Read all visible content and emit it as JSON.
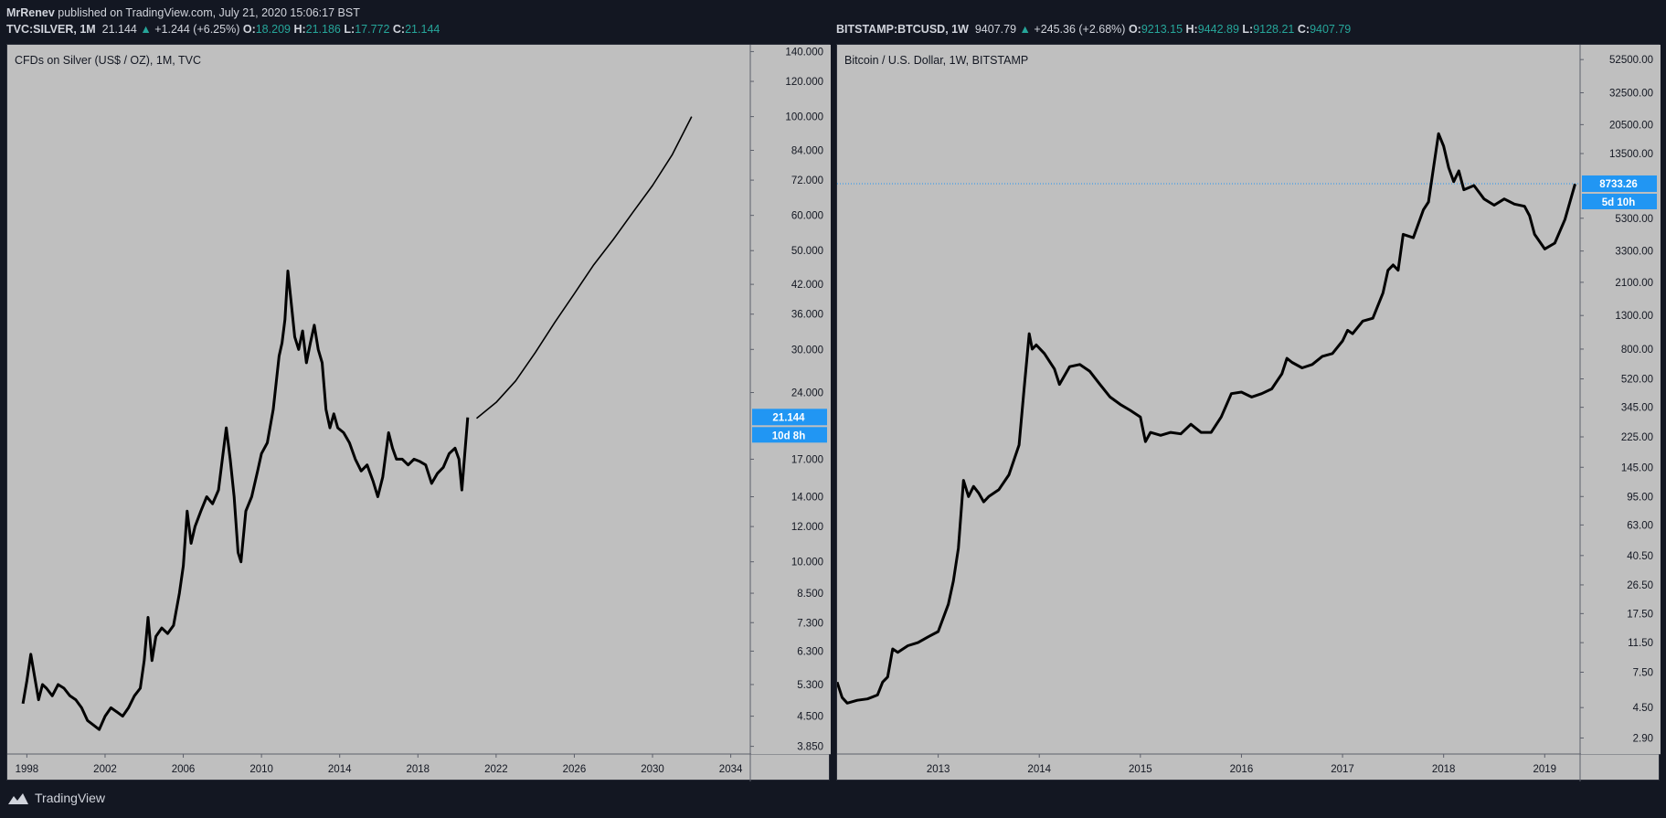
{
  "header": {
    "user": "MrRenev",
    "text": "published on TradingView.com, July 21, 2020 15:06:17 BST"
  },
  "left_info": {
    "symbol": "TVC:SILVER, 1M",
    "price": "21.144",
    "change": "+1.244 (+6.25%)",
    "o_label": "O:",
    "o": "18.209",
    "h_label": "H:",
    "h": "21.186",
    "l_label": "L:",
    "l": "17.772",
    "c_label": "C:",
    "c": "21.144"
  },
  "right_info": {
    "symbol": "BITSTAMP:BTCUSD, 1W",
    "price": "9407.79",
    "change": "+245.36 (+2.68%)",
    "o_label": "O:",
    "o": "9213.15",
    "h_label": "H:",
    "h": "9442.89",
    "l_label": "L:",
    "l": "9128.21",
    "c_label": "C:",
    "c": "9407.79"
  },
  "brand": {
    "name": "TradingView"
  },
  "colors": {
    "background": "#131722",
    "panel": "#bfbfbf",
    "line": "#000000",
    "accent": "#2196f3",
    "up": "#26a69a"
  },
  "chart_data": [
    {
      "type": "line",
      "title": "CFDs on Silver (US$ / OZ), 1M, TVC",
      "scale": "log",
      "ylim": [
        3.7,
        145
      ],
      "xlim": [
        1997.0,
        2035.0
      ],
      "y_ticks": [
        "140.000",
        "120.000",
        "100.000",
        "84.000",
        "72.000",
        "60.000",
        "50.000",
        "42.000",
        "36.000",
        "30.000",
        "24.000",
        "21.144",
        "17.000",
        "14.000",
        "12.000",
        "10.000",
        "8.500",
        "7.300",
        "6.300",
        "5.300",
        "4.500",
        "3.850"
      ],
      "x_ticks": [
        "1998",
        "2002",
        "2006",
        "2010",
        "2014",
        "2018",
        "2022",
        "2026",
        "2030",
        "2034"
      ],
      "last_value_label": "21.144",
      "countdown_label": "10d 8h",
      "series": [
        {
          "x": [
            1997.8,
            1998.0,
            1998.2,
            1998.4,
            1998.6,
            1998.8,
            1999.0,
            1999.3,
            1999.6,
            1999.9,
            2000.2,
            2000.5,
            2000.8,
            2001.1,
            2001.4,
            2001.7,
            2002.0,
            2002.3,
            2002.6,
            2002.9,
            2003.2,
            2003.5,
            2003.8,
            2004.0,
            2004.2,
            2004.4,
            2004.6,
            2004.9,
            2005.2,
            2005.5,
            2005.8,
            2006.0,
            2006.2,
            2006.4,
            2006.6,
            2006.9,
            2007.2,
            2007.5,
            2007.8,
            2008.0,
            2008.2,
            2008.4,
            2008.6,
            2008.8,
            2008.95,
            2009.2,
            2009.5,
            2009.8,
            2010.0,
            2010.3,
            2010.6,
            2010.9,
            2011.05,
            2011.2,
            2011.35,
            2011.5,
            2011.7,
            2011.9,
            2012.1,
            2012.3,
            2012.5,
            2012.7,
            2012.9,
            2013.1,
            2013.3,
            2013.5,
            2013.7,
            2013.9,
            2014.2,
            2014.5,
            2014.8,
            2015.1,
            2015.4,
            2015.7,
            2015.95,
            2016.2,
            2016.5,
            2016.7,
            2016.9,
            2017.2,
            2017.5,
            2017.8,
            2018.1,
            2018.4,
            2018.7,
            2019.0,
            2019.3,
            2019.6,
            2019.9,
            2020.1,
            2020.25,
            2020.4,
            2020.55
          ],
          "y": [
            4.8,
            5.4,
            6.2,
            5.5,
            4.9,
            5.3,
            5.2,
            5.0,
            5.3,
            5.2,
            5.0,
            4.9,
            4.7,
            4.4,
            4.3,
            4.2,
            4.5,
            4.7,
            4.6,
            4.5,
            4.7,
            5.0,
            5.2,
            6.0,
            7.5,
            6.0,
            6.8,
            7.1,
            6.9,
            7.2,
            8.5,
            9.8,
            13.0,
            11.0,
            12.0,
            13.0,
            14.0,
            13.5,
            14.5,
            17.0,
            20.0,
            17.0,
            14.0,
            10.5,
            10.0,
            13.0,
            14.0,
            16.0,
            17.5,
            18.5,
            22.0,
            29.0,
            31.0,
            35.0,
            45.0,
            39.0,
            32.0,
            30.0,
            33.0,
            28.0,
            31.0,
            34.0,
            30.0,
            28.0,
            22.0,
            20.0,
            21.5,
            20.0,
            19.5,
            18.5,
            17.0,
            16.0,
            16.5,
            15.2,
            14.0,
            15.5,
            19.5,
            18.0,
            17.0,
            17.0,
            16.5,
            17.0,
            16.8,
            16.5,
            15.0,
            15.8,
            16.3,
            17.5,
            18.0,
            17.0,
            14.5,
            17.5,
            21.1
          ]
        },
        {
          "name": "projection",
          "x": [
            2021.0,
            2022.0,
            2023.0,
            2024.0,
            2025.0,
            2026.0,
            2027.0,
            2028.0,
            2029.0,
            2030.0,
            2031.0,
            2032.0
          ],
          "y": [
            21.0,
            22.8,
            25.5,
            29.5,
            34.5,
            40.0,
            46.5,
            53.0,
            61.0,
            70.0,
            82.0,
            100.0
          ]
        }
      ]
    },
    {
      "type": "line",
      "title": "Bitcoin / U.S. Dollar, 1W, BITSTAMP",
      "scale": "log",
      "ylim": [
        2.3,
        65000
      ],
      "xlim": [
        2012.0,
        2019.35
      ],
      "y_ticks": [
        "52500.00",
        "32500.00",
        "20500.00",
        "13500.00",
        "8733.26",
        "5300.00",
        "3300.00",
        "2100.00",
        "1300.00",
        "800.00",
        "520.00",
        "345.00",
        "225.00",
        "145.00",
        "95.00",
        "63.00",
        "40.50",
        "26.50",
        "17.50",
        "11.50",
        "7.50",
        "4.50",
        "2.90"
      ],
      "x_ticks": [
        "2013",
        "2014",
        "2015",
        "2016",
        "2017",
        "2018",
        "2019"
      ],
      "last_value_label": "8733.26",
      "countdown_label": "5d 10h",
      "price_line": 8733.26,
      "series": [
        {
          "x": [
            2012.0,
            2012.05,
            2012.1,
            2012.2,
            2012.3,
            2012.4,
            2012.45,
            2012.5,
            2012.55,
            2012.6,
            2012.7,
            2012.8,
            2012.9,
            2013.0,
            2013.1,
            2013.15,
            2013.2,
            2013.25,
            2013.3,
            2013.35,
            2013.4,
            2013.45,
            2013.5,
            2013.6,
            2013.7,
            2013.8,
            2013.85,
            2013.9,
            2013.93,
            2013.97,
            2014.05,
            2014.15,
            2014.2,
            2014.3,
            2014.4,
            2014.5,
            2014.6,
            2014.7,
            2014.8,
            2014.9,
            2015.0,
            2015.05,
            2015.1,
            2015.2,
            2015.3,
            2015.4,
            2015.5,
            2015.6,
            2015.7,
            2015.8,
            2015.9,
            2016.0,
            2016.1,
            2016.2,
            2016.3,
            2016.4,
            2016.45,
            2016.5,
            2016.6,
            2016.7,
            2016.8,
            2016.9,
            2017.0,
            2017.05,
            2017.1,
            2017.2,
            2017.3,
            2017.4,
            2017.45,
            2017.5,
            2017.55,
            2017.6,
            2017.7,
            2017.8,
            2017.85,
            2017.9,
            2017.95,
            2018.0,
            2018.05,
            2018.1,
            2018.15,
            2018.2,
            2018.3,
            2018.4,
            2018.5,
            2018.6,
            2018.7,
            2018.8,
            2018.85,
            2018.9,
            2019.0,
            2019.1,
            2019.2,
            2019.3
          ],
          "y": [
            6.5,
            5.2,
            4.8,
            5.0,
            5.1,
            5.4,
            6.5,
            7.0,
            10.5,
            10.0,
            11.0,
            11.5,
            12.5,
            13.5,
            20.0,
            28.0,
            45.0,
            120.0,
            95.0,
            110.0,
            100.0,
            88.0,
            95.0,
            105.0,
            130.0,
            200.0,
            450.0,
            1000.0,
            800.0,
            850.0,
            750.0,
            600.0,
            480.0,
            620.0,
            640.0,
            580.0,
            480.0,
            400.0,
            360.0,
            330.0,
            300.0,
            210.0,
            240.0,
            230.0,
            240.0,
            235.0,
            270.0,
            240.0,
            240.0,
            300.0,
            420.0,
            430.0,
            400.0,
            420.0,
            450.0,
            560.0,
            700.0,
            660.0,
            610.0,
            640.0,
            720.0,
            750.0,
            900.0,
            1050.0,
            1000.0,
            1200.0,
            1250.0,
            1800.0,
            2500.0,
            2700.0,
            2500.0,
            4200.0,
            4000.0,
            6000.0,
            6700.0,
            11000.0,
            18000.0,
            15000.0,
            11000.0,
            9000.0,
            10500.0,
            8000.0,
            8500.0,
            7000.0,
            6400.0,
            7000.0,
            6500.0,
            6300.0,
            5500.0,
            4200.0,
            3400.0,
            3700.0,
            5200.0,
            8700.0
          ]
        }
      ]
    }
  ]
}
